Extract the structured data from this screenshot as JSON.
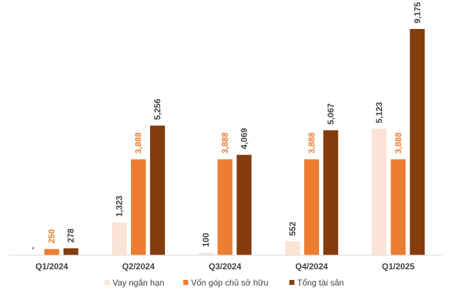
{
  "chart_data": {
    "type": "bar",
    "title": "",
    "xlabel": "",
    "ylabel": "",
    "categories": [
      "Q1/2024",
      "Q2/2024",
      "Q3/2024",
      "Q4/2024",
      "Q1/2025"
    ],
    "series": [
      {
        "name": "Vay ngắn hạn",
        "color": "#FBE3D6",
        "label_color": "#404040",
        "values": [
          0,
          1323,
          100,
          552,
          5123
        ],
        "labels": [
          "-",
          "1,323",
          "100",
          "552",
          "5,123"
        ]
      },
      {
        "name": "Vốn góp chủ sở hữu",
        "color": "#ED7D31",
        "label_color": "#ED7D31",
        "values": [
          250,
          3888,
          3888,
          3888,
          3888
        ],
        "labels": [
          "250",
          "3,888",
          "3,888",
          "3,888",
          "3,888"
        ]
      },
      {
        "name": "Tổng tài sản",
        "color": "#843C0C",
        "label_color": "#404040",
        "values": [
          278,
          5256,
          4069,
          5067,
          9175
        ],
        "labels": [
          "278",
          "5,256",
          "4,069",
          "5,067",
          "9,175"
        ]
      }
    ],
    "ylim": [
      0,
      9175
    ],
    "grid": false,
    "legend_position": "bottom"
  }
}
